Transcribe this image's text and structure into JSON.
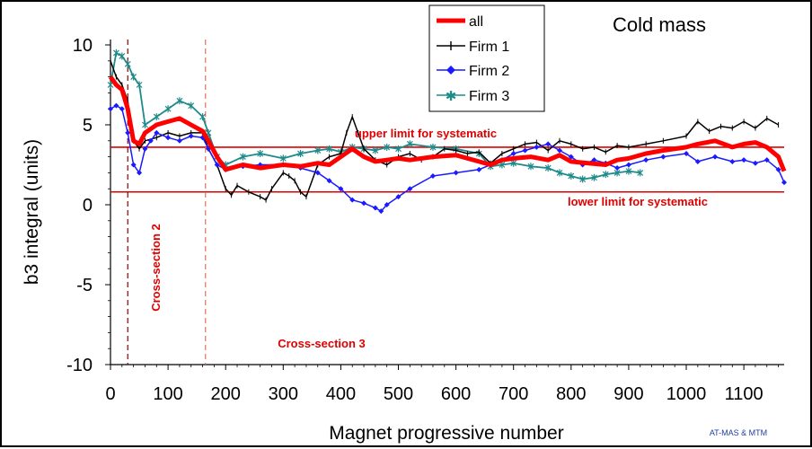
{
  "chart_data": {
    "type": "line",
    "title": "Cold mass",
    "xlabel": "Magnet progressive number",
    "ylabel": "b3 integral (units)",
    "xlim": [
      0,
      1170
    ],
    "ylim": [
      -10,
      10
    ],
    "x_ticks": [
      "0",
      "100",
      "200",
      "300",
      "400",
      "500",
      "600",
      "700",
      "800",
      "900",
      "1000",
      "1100"
    ],
    "y_ticks": [
      "10",
      "5",
      "0",
      "-5",
      "-10"
    ],
    "grid": false,
    "legend_position": "top-center",
    "colors": {
      "all": "#ff0000",
      "firm1": "#000000",
      "firm2": "#1a1aff",
      "firm3": "#1f8a8a",
      "annotation": "#e00000"
    },
    "series": [
      {
        "name": "all",
        "x": [
          0,
          10,
          20,
          30,
          40,
          50,
          60,
          80,
          100,
          120,
          140,
          160,
          170,
          185,
          200,
          230,
          260,
          300,
          330,
          360,
          380,
          400,
          420,
          440,
          460,
          480,
          500,
          520,
          560,
          600,
          640,
          660,
          680,
          700,
          730,
          760,
          780,
          800,
          830,
          860,
          880,
          900,
          930,
          960,
          1000,
          1020,
          1050,
          1080,
          1100,
          1120,
          1140,
          1160,
          1170
        ],
        "y": [
          8.0,
          7.5,
          7.2,
          6.0,
          4.0,
          3.8,
          4.5,
          5.0,
          5.2,
          5.4,
          5.0,
          4.6,
          4.0,
          3.0,
          2.2,
          2.5,
          2.3,
          2.5,
          2.4,
          2.6,
          2.5,
          3.0,
          3.5,
          3.0,
          2.7,
          2.8,
          2.9,
          2.8,
          3.0,
          3.1,
          2.7,
          2.5,
          2.8,
          2.9,
          3.0,
          2.8,
          3.1,
          2.7,
          2.6,
          2.5,
          2.8,
          2.9,
          3.2,
          3.4,
          3.6,
          3.8,
          4.0,
          3.6,
          3.8,
          3.9,
          3.6,
          3.0,
          2.1
        ]
      },
      {
        "name": "Firm 1",
        "x": [
          0,
          10,
          20,
          30,
          40,
          50,
          60,
          80,
          100,
          120,
          140,
          160,
          170,
          185,
          200,
          210,
          220,
          240,
          260,
          270,
          280,
          300,
          310,
          320,
          330,
          340,
          360,
          380,
          400,
          410,
          420,
          430,
          440,
          460,
          480,
          500,
          520,
          540,
          560,
          580,
          600,
          620,
          640,
          660,
          680,
          700,
          720,
          740,
          760,
          780,
          800,
          820,
          840,
          860,
          880,
          900,
          930,
          960,
          1000,
          1020,
          1040,
          1060,
          1080,
          1100,
          1120,
          1140,
          1160
        ],
        "y": [
          9.0,
          8.0,
          7.5,
          6.5,
          4.0,
          3.5,
          4.0,
          4.2,
          4.5,
          4.3,
          4.5,
          4.5,
          3.5,
          2.5,
          1.0,
          0.6,
          1.2,
          0.8,
          0.5,
          0.3,
          1.0,
          2.0,
          1.8,
          1.5,
          0.8,
          0.5,
          2.5,
          3.0,
          3.2,
          4.5,
          5.5,
          4.5,
          3.5,
          2.8,
          2.5,
          3.0,
          3.2,
          2.8,
          3.0,
          3.5,
          3.4,
          3.2,
          3.3,
          2.6,
          3.2,
          3.5,
          3.8,
          3.9,
          3.4,
          4.0,
          3.8,
          3.5,
          3.6,
          3.3,
          3.7,
          3.6,
          3.8,
          4.0,
          4.3,
          5.2,
          4.6,
          4.9,
          4.8,
          5.2,
          4.8,
          5.4,
          5.0
        ]
      },
      {
        "name": "Firm 2",
        "x": [
          0,
          10,
          20,
          30,
          40,
          50,
          60,
          70,
          80,
          100,
          120,
          140,
          160,
          170,
          185,
          200,
          230,
          260,
          300,
          330,
          360,
          380,
          400,
          420,
          440,
          460,
          470,
          480,
          500,
          520,
          560,
          600,
          640,
          660,
          680,
          700,
          720,
          740,
          760,
          780,
          800,
          820,
          840,
          860,
          880,
          900,
          930,
          960,
          1000,
          1020,
          1050,
          1080,
          1100,
          1120,
          1140,
          1160,
          1170
        ],
        "y": [
          6.0,
          6.2,
          6.0,
          4.5,
          2.5,
          2.0,
          3.5,
          4.0,
          4.5,
          4.2,
          4.0,
          4.3,
          4.2,
          3.5,
          2.5,
          2.2,
          2.4,
          2.5,
          2.5,
          2.3,
          2.0,
          1.5,
          1.0,
          0.3,
          0.1,
          -0.2,
          -0.4,
          0.0,
          0.5,
          1.0,
          1.8,
          2.0,
          2.2,
          2.5,
          2.8,
          3.2,
          3.4,
          3.6,
          3.8,
          3.4,
          3.0,
          2.5,
          2.8,
          2.6,
          2.3,
          2.5,
          2.8,
          3.0,
          3.2,
          2.7,
          3.0,
          2.7,
          2.8,
          2.6,
          2.8,
          2.2,
          1.4
        ]
      },
      {
        "name": "Firm 3",
        "x": [
          0,
          10,
          20,
          30,
          40,
          50,
          60,
          80,
          100,
          120,
          140,
          160,
          170,
          185,
          200,
          230,
          260,
          300,
          330,
          360,
          380,
          400,
          420,
          440,
          460,
          480,
          500,
          520,
          560,
          600,
          640,
          660,
          680,
          700,
          730,
          760,
          780,
          800,
          820,
          840,
          860,
          880,
          900,
          920
        ],
        "y": [
          7.5,
          9.5,
          9.3,
          8.8,
          8.0,
          7.5,
          5.0,
          5.5,
          6.0,
          6.5,
          6.2,
          5.5,
          4.5,
          3.0,
          2.5,
          3.0,
          3.2,
          2.9,
          3.2,
          3.4,
          3.5,
          3.3,
          3.6,
          3.5,
          3.4,
          3.6,
          3.5,
          3.8,
          3.6,
          3.5,
          3.2,
          2.4,
          2.5,
          2.6,
          2.4,
          2.3,
          2.0,
          1.8,
          1.6,
          1.7,
          1.9,
          2.0,
          2.1,
          2.0
        ]
      }
    ],
    "reference_lines": [
      {
        "y": 3.6,
        "label": "upper limit for systematic"
      },
      {
        "y": 0.8,
        "label": "lower limit for systematic"
      }
    ],
    "vertical_markers": [
      {
        "x": 30,
        "label": "Cross-section 2"
      },
      {
        "x": 165,
        "label": "Cross-section 3"
      }
    ],
    "credit": "AT-MAS & MTM"
  }
}
